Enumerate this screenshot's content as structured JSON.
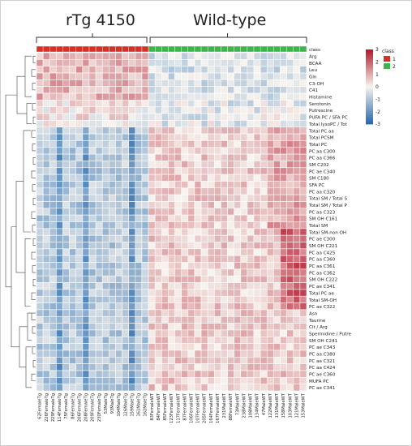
{
  "group_titles": {
    "left": "rTg 4150",
    "right": "Wild-type"
  },
  "legend": {
    "title": "class",
    "items": [
      {
        "label": "1",
        "color": "#d73027"
      },
      {
        "label": "2",
        "color": "#3cb54a"
      }
    ],
    "scale_ticks": [
      "3",
      "2",
      "1",
      "0",
      "-1",
      "-2",
      "-3"
    ]
  },
  "chart_data": {
    "type": "heatmap",
    "title": "",
    "color_scale": {
      "min": -3,
      "max": 3,
      "low_color": "#2166ac",
      "mid_color": "#f7f4ef",
      "high_color": "#b2182b"
    },
    "class_row_label": "class",
    "class_colors": {
      "1": "#d73027",
      "2": "#3cb54a"
    },
    "rows": [
      "Arg",
      "BCAA",
      "Leu",
      "Gln",
      "C3-OH",
      "C41",
      "Histamine",
      "Serotonin",
      "Putrescine",
      "PUFA PC / SFA PC",
      "Total lysoPC / Tot",
      "Total PC aa",
      "Total PCSM",
      "Total PC",
      "PC aa C300",
      "PC aa C366",
      "SM C202",
      "PC ae C340",
      "SM C180",
      "SFA PC",
      "PC aa C320",
      "Total SM / Total S",
      "Total SM / Total P",
      "PC aa C323",
      "SM OH C161",
      "Total SM",
      "Total SM-non OH",
      "PC ae C300",
      "SM OH C221",
      "PC aa C425",
      "PC aa C360",
      "PC aa C361",
      "PC aa C362",
      "SM OH C222",
      "PC ae C341",
      "Total PC ae",
      "Total SM-OH",
      "PC ae C322",
      "Asn",
      "Taurine",
      "Cit / Arg",
      "Spermidine / Putre",
      "SM OH C241",
      "PC ae C343",
      "PC aa C380",
      "PC ae C321",
      "PC aa C424",
      "PC ae C360",
      "MUFA PC",
      "PC ae C341"
    ],
    "columns": [
      {
        "label": "62FemaleTg",
        "class": "1"
      },
      {
        "label": "226FemaleTg",
        "class": "1"
      },
      {
        "label": "229FemaleTg",
        "class": "1"
      },
      {
        "label": "114FemaleTg",
        "class": "1"
      },
      {
        "label": "75FemaleTg",
        "class": "1"
      },
      {
        "label": "86FemaleTg",
        "class": "1"
      },
      {
        "label": "206FemaleTg",
        "class": "1"
      },
      {
        "label": "208FemaleTg",
        "class": "1"
      },
      {
        "label": "209FemaleTg",
        "class": "1"
      },
      {
        "label": "230FemaleTg",
        "class": "1"
      },
      {
        "label": "53MaleTg",
        "class": "1"
      },
      {
        "label": "93MaleTg",
        "class": "1"
      },
      {
        "label": "104MaleTg",
        "class": "1"
      },
      {
        "label": "126MaleTg",
        "class": "1"
      },
      {
        "label": "159MaleTg",
        "class": "1"
      },
      {
        "label": "161MaleTg",
        "class": "1"
      },
      {
        "label": "162MaleTg",
        "class": "1"
      },
      {
        "label": "83FemaleWT",
        "class": "2"
      },
      {
        "label": "84FemaleWT",
        "class": "2"
      },
      {
        "label": "85FemaleWT",
        "class": "2"
      },
      {
        "label": "123FemaleWT",
        "class": "2"
      },
      {
        "label": "117FemaleWT",
        "class": "2"
      },
      {
        "label": "87FemaleWT",
        "class": "2"
      },
      {
        "label": "106FemaleWT",
        "class": "2"
      },
      {
        "label": "107FemaleWT",
        "class": "2"
      },
      {
        "label": "205FemaleWT",
        "class": "2"
      },
      {
        "label": "164FemaleWT",
        "class": "2"
      },
      {
        "label": "167FemaleWT",
        "class": "2"
      },
      {
        "label": "231MaleWT",
        "class": "2"
      },
      {
        "label": "88FemaleWT",
        "class": "2"
      },
      {
        "label": "73MaleWT",
        "class": "2"
      },
      {
        "label": "238MaleWT",
        "class": "2"
      },
      {
        "label": "108MaleWT",
        "class": "2"
      },
      {
        "label": "134MaleWT",
        "class": "2"
      },
      {
        "label": "47MaleWT",
        "class": "2"
      },
      {
        "label": "122MaleWT",
        "class": "2"
      },
      {
        "label": "131MaleWT",
        "class": "2"
      },
      {
        "label": "158MaleWT",
        "class": "2"
      },
      {
        "label": "103MaleWT",
        "class": "2"
      },
      {
        "label": "121MaleWT",
        "class": "2"
      },
      {
        "label": "153MaleWT",
        "class": "2"
      }
    ]
  }
}
